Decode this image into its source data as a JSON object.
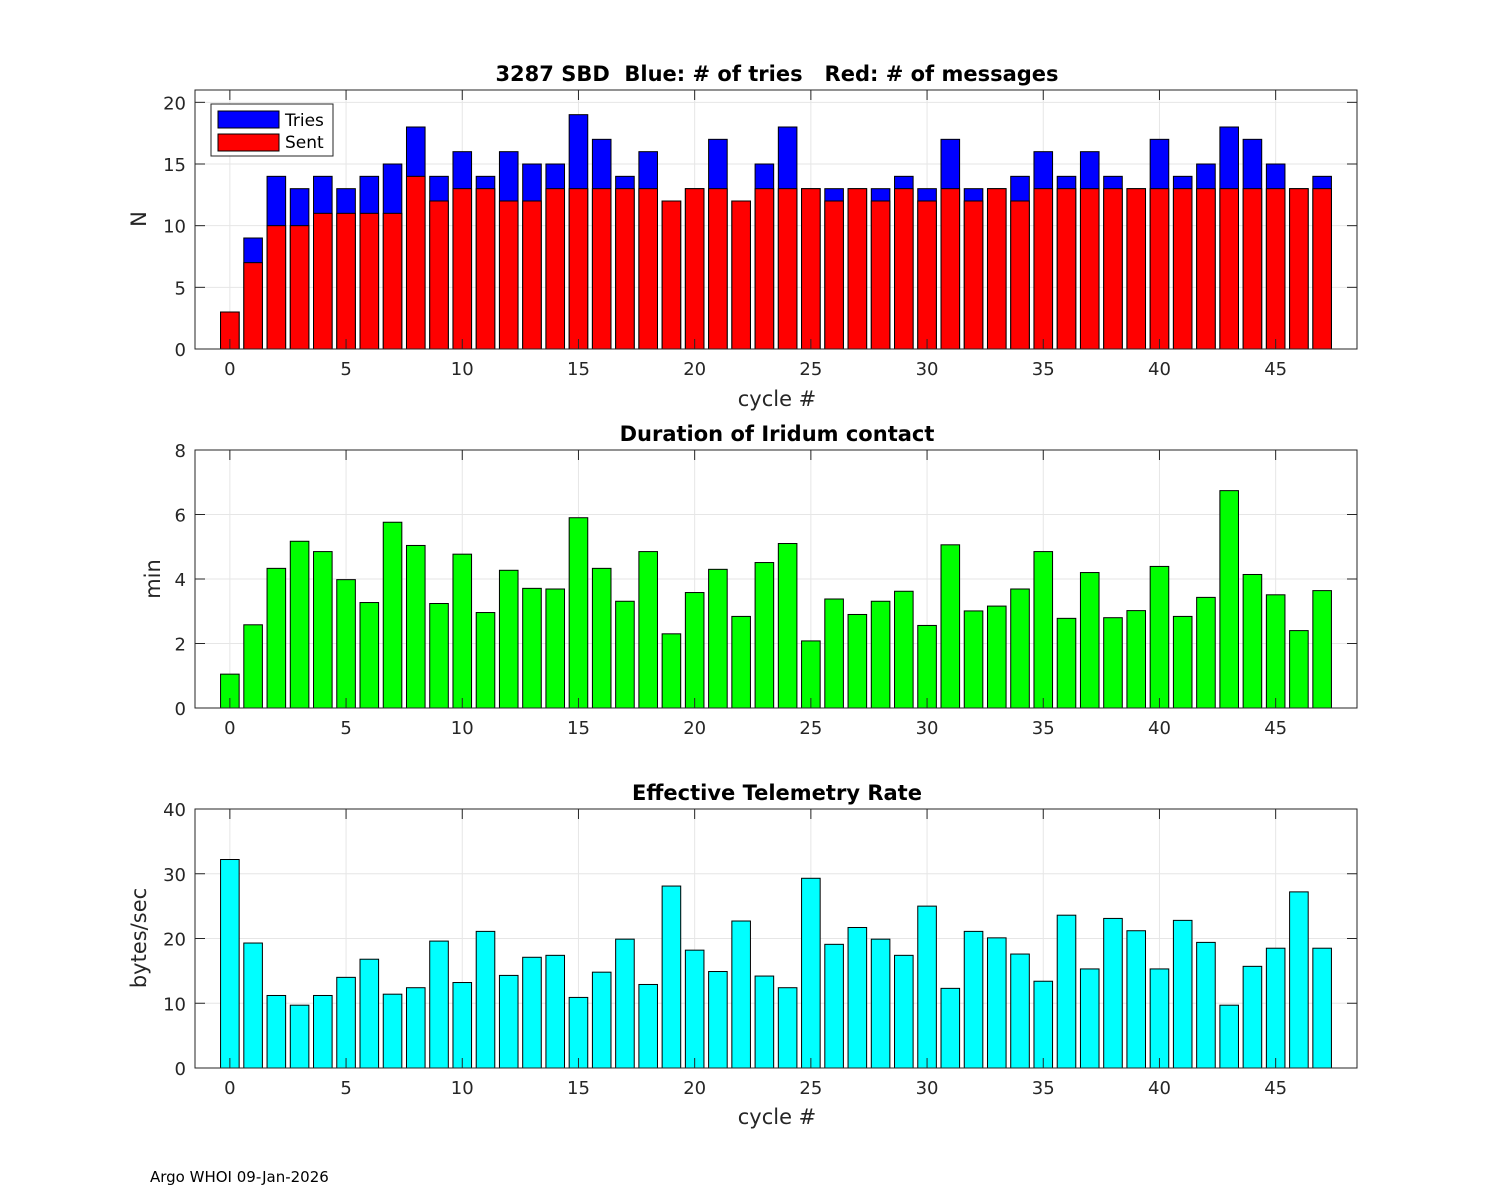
{
  "footer": "Argo WHOI 09-Jan-2026",
  "chart_data": [
    {
      "type": "bar",
      "title": "3287 SBD  Blue: # of tries   Red: # of messages",
      "xlabel": "cycle #",
      "ylabel": "N",
      "xlim": [
        -1.5,
        48.5
      ],
      "ylim": [
        0,
        21
      ],
      "xticks": [
        0,
        5,
        10,
        15,
        20,
        25,
        30,
        35,
        40,
        45
      ],
      "yticks": [
        0,
        5,
        10,
        15,
        20
      ],
      "grid": true,
      "legend": {
        "location": "top-left",
        "entries": [
          "Tries",
          "Sent"
        ]
      },
      "x": [
        0,
        1,
        2,
        3,
        4,
        5,
        6,
        7,
        8,
        9,
        10,
        11,
        12,
        13,
        14,
        15,
        16,
        17,
        18,
        19,
        20,
        21,
        22,
        23,
        24,
        25,
        26,
        27,
        28,
        29,
        30,
        31,
        32,
        33,
        34,
        35,
        36,
        37,
        38,
        39,
        40,
        41,
        42,
        43,
        44,
        45,
        46,
        47
      ],
      "series": [
        {
          "name": "Tries",
          "color": "#0000ff",
          "values": [
            3,
            9,
            14,
            13,
            14,
            13,
            14,
            15,
            18,
            14,
            16,
            14,
            16,
            15,
            15,
            19,
            17,
            14,
            16,
            12,
            13,
            17,
            12,
            15,
            18,
            13,
            13,
            13,
            13,
            14,
            13,
            17,
            13,
            13,
            14,
            16,
            14,
            16,
            14,
            13,
            17,
            14,
            15,
            18,
            17,
            15,
            13,
            14
          ]
        },
        {
          "name": "Sent",
          "color": "#ff0000",
          "values": [
            3,
            7,
            10,
            10,
            11,
            11,
            11,
            11,
            14,
            12,
            13,
            13,
            12,
            12,
            13,
            13,
            13,
            13,
            13,
            12,
            13,
            13,
            12,
            13,
            13,
            13,
            12,
            13,
            12,
            13,
            12,
            13,
            12,
            13,
            12,
            13,
            13,
            13,
            13,
            13,
            13,
            13,
            13,
            13,
            13,
            13,
            13,
            13
          ]
        }
      ]
    },
    {
      "type": "bar",
      "title": "Duration of Iridum contact",
      "xlabel": "",
      "ylabel": "min",
      "xlim": [
        -1.5,
        48.5
      ],
      "ylim": [
        0,
        8
      ],
      "xticks": [
        0,
        5,
        10,
        15,
        20,
        25,
        30,
        35,
        40,
        45
      ],
      "yticks": [
        0,
        2,
        4,
        6,
        8
      ],
      "grid": true,
      "x": [
        -1,
        0,
        1,
        2,
        3,
        4,
        5,
        6,
        7,
        8,
        9,
        10,
        11,
        12,
        13,
        14,
        15,
        16,
        17,
        18,
        19,
        20,
        21,
        22,
        23,
        24,
        25,
        26,
        27,
        28,
        29,
        30,
        31,
        32,
        33,
        34,
        35,
        36,
        37,
        38,
        39,
        40,
        41,
        42,
        43,
        44,
        45,
        46,
        47
      ],
      "series": [
        {
          "name": "Duration",
          "color": "#00ff00",
          "values": [
            0,
            1.05,
            2.58,
            4.33,
            5.17,
            4.85,
            3.98,
            3.27,
            5.76,
            5.04,
            3.24,
            4.77,
            2.96,
            4.27,
            3.71,
            3.69,
            5.9,
            4.33,
            3.31,
            4.85,
            2.3,
            3.58,
            4.3,
            2.84,
            4.51,
            5.1,
            2.08,
            3.38,
            2.9,
            3.31,
            3.62,
            2.56,
            5.06,
            3.01,
            3.16,
            3.69,
            4.85,
            2.78,
            4.2,
            2.8,
            3.02,
            4.39,
            2.84,
            3.43,
            6.74,
            4.14,
            3.51,
            2.4,
            3.64
          ]
        }
      ]
    },
    {
      "type": "bar",
      "title": "Effective Telemetry Rate",
      "xlabel": "cycle #",
      "ylabel": "bytes/sec",
      "xlim": [
        -1.5,
        48.5
      ],
      "ylim": [
        0,
        40
      ],
      "xticks": [
        0,
        5,
        10,
        15,
        20,
        25,
        30,
        35,
        40,
        45
      ],
      "yticks": [
        0,
        10,
        20,
        30,
        40
      ],
      "grid": true,
      "x": [
        0,
        1,
        2,
        3,
        4,
        5,
        6,
        7,
        8,
        9,
        10,
        11,
        12,
        13,
        14,
        15,
        16,
        17,
        18,
        19,
        20,
        21,
        22,
        23,
        24,
        25,
        26,
        27,
        28,
        29,
        30,
        31,
        32,
        33,
        34,
        35,
        36,
        37,
        38,
        39,
        40,
        41,
        42,
        43,
        44,
        45,
        46,
        47
      ],
      "series": [
        {
          "name": "Rate",
          "color": "#00ffff",
          "values": [
            32.2,
            19.3,
            11.2,
            9.7,
            11.2,
            14,
            16.8,
            11.4,
            12.4,
            19.6,
            13.2,
            21.1,
            14.3,
            17.1,
            17.4,
            10.9,
            14.8,
            19.9,
            12.9,
            28.1,
            18.2,
            14.9,
            22.7,
            14.2,
            12.4,
            29.3,
            19.1,
            21.7,
            19.9,
            17.4,
            25,
            12.3,
            21.1,
            20.1,
            17.6,
            13.4,
            23.6,
            15.3,
            23.1,
            21.2,
            15.3,
            22.8,
            19.4,
            9.7,
            15.7,
            18.5,
            27.2,
            18.5
          ]
        }
      ]
    }
  ]
}
